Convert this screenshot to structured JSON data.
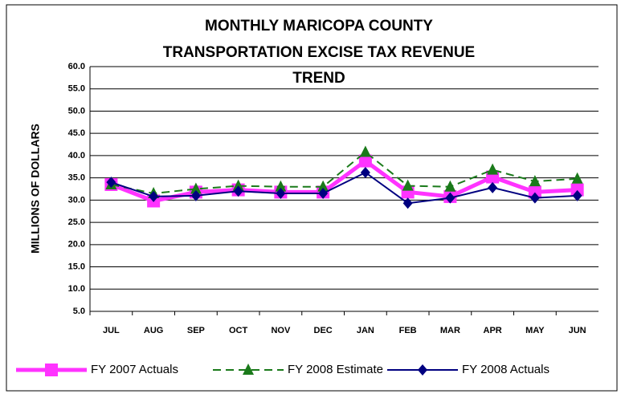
{
  "chart_data": {
    "type": "line",
    "title": [
      "MONTHLY MARICOPA COUNTY",
      "TRANSPORTATION EXCISE TAX REVENUE",
      "TREND"
    ],
    "y_label": "MILLIONS OF DOLLARS",
    "categories": [
      "JUL",
      "AUG",
      "SEP",
      "OCT",
      "NOV",
      "DEC",
      "JAN",
      "FEB",
      "MAR",
      "APR",
      "MAY",
      "JUN"
    ],
    "series": [
      {
        "name": "FY 2007 Actuals",
        "color": "#ff33ff",
        "marker": "square",
        "dashed": false,
        "values": [
          33.5,
          29.8,
          31.8,
          32.3,
          31.8,
          31.8,
          38.8,
          31.8,
          30.8,
          35.2,
          31.8,
          32.3
        ]
      },
      {
        "name": "FY 2008 Estimate",
        "color": "#1a7a1a",
        "marker": "triangle",
        "dashed": true,
        "values": [
          33.5,
          31.5,
          32.5,
          33.2,
          33.0,
          33.0,
          40.8,
          33.2,
          33.0,
          36.8,
          34.2,
          34.8
        ]
      },
      {
        "name": "FY 2008 Actuals",
        "color": "#000080",
        "marker": "diamond",
        "dashed": false,
        "values": [
          34.0,
          30.8,
          31.0,
          32.0,
          31.5,
          31.5,
          36.2,
          29.3,
          30.5,
          32.8,
          30.5,
          31.0
        ]
      }
    ],
    "ylim": [
      5,
      60
    ],
    "yticks": [
      {
        "value": 5,
        "label": "5.0"
      },
      {
        "value": 10,
        "label": "10.0"
      },
      {
        "value": 15,
        "label": "15.0"
      },
      {
        "value": 20,
        "label": "20.0"
      },
      {
        "value": 25,
        "label": "25.0"
      },
      {
        "value": 30,
        "label": "30.0"
      },
      {
        "value": 35,
        "label": "35.0"
      },
      {
        "value": 40,
        "label": "40.0"
      },
      {
        "value": 45,
        "label": "45.0"
      },
      {
        "value": 50,
        "label": "50.0"
      },
      {
        "value": 55,
        "label": "55.0"
      },
      {
        "value": 60,
        "label": "60.0"
      }
    ],
    "grid": true,
    "legend": "bottom"
  }
}
